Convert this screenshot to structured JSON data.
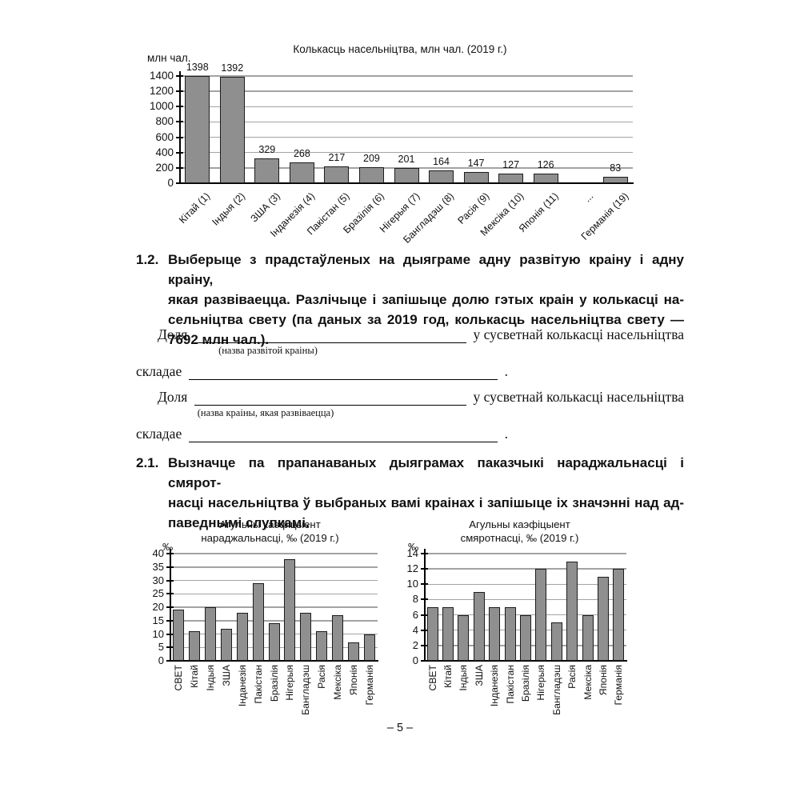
{
  "page": {
    "number_label": "– 5 –"
  },
  "colors": {
    "bar_fill": "#8f8f8f",
    "bar_border": "#1c1c1c",
    "gridline": "#a3a3a3",
    "text": "#111111"
  },
  "tasks": {
    "t12": {
      "number": "1.2.",
      "lines": [
        "Выберыце з прадстаўленых на дыяграме адну развітую краіну і адну краіну,",
        "якая развіваецца. Разлічыце і запішыце долю гэтых краін у колькасці на-",
        "сельніцтва свету (па даных за 2019 год, колькасць насельніцтва свету —",
        "7692 млн чал.)."
      ]
    },
    "t21": {
      "number": "2.1.",
      "lines": [
        "Вызначце па прапанаваных дыяграмах паказчыкі нараджальнасці і смярот-",
        "насці насельніцтва ў выбраных вамі краінах і запішыце іх значэнні над ад-",
        "паведнымі слупкамі."
      ]
    }
  },
  "fill_in": {
    "dolya_label": "Доля",
    "tail_label": "у сусветнай колькасці насельніцтва",
    "skladae_label": "складае",
    "period": ".",
    "caption_developed": "(назва развітой краіны)",
    "caption_developing": "(назва краіны, якая развіваецца)"
  },
  "chart_data": [
    {
      "type": "bar",
      "title": "Колькасць насельніцтва, млн чал. (2019 г.)",
      "ylabel": "млн чал.",
      "xlabel": "",
      "ylim": [
        0,
        1400
      ],
      "ystep": 200,
      "grid": true,
      "legend": false,
      "data_labels": true,
      "categories": [
        "Кітай (1)",
        "Індыя (2)",
        "ЗША (3)",
        "Інданезія (4)",
        "Пакістан (5)",
        "Бразілія (6)",
        "Нігерыя (7)",
        "Бангладэш (8)",
        "Расія (9)",
        "Мексіка (10)",
        "Японія (11)",
        "...",
        "Германія (19)"
      ],
      "values": [
        1398,
        1392,
        329,
        268,
        217,
        209,
        201,
        164,
        147,
        127,
        126,
        null,
        83
      ]
    },
    {
      "type": "bar",
      "title": "Агульны каэфіцыент нараджальнасці, ‰ (2019 г.)",
      "title_lines": [
        "Агульны каэфіцыент",
        "нараджальнасці, ‰ (2019 г.)"
      ],
      "ylabel": "‰",
      "xlabel": "",
      "ylim": [
        0,
        40
      ],
      "ystep": 5,
      "grid": true,
      "legend": false,
      "data_labels": false,
      "categories": [
        "СВЕТ",
        "Кітай",
        "Індыя",
        "ЗША",
        "Інданезія",
        "Пакістан",
        "Бразілія",
        "Нігерыя",
        "Бангладэш",
        "Расія",
        "Мексіка",
        "Японія",
        "Германія"
      ],
      "values": [
        19,
        11,
        20,
        12,
        18,
        29,
        14,
        38,
        18,
        11,
        17,
        7,
        10
      ]
    },
    {
      "type": "bar",
      "title": "Агульны каэфіцыент смяротнасці, ‰ (2019 г.)",
      "title_lines": [
        "Агульны каэфіцыент",
        "смяротнасці, ‰ (2019 г.)"
      ],
      "ylabel": "‰",
      "xlabel": "",
      "ylim": [
        0,
        14
      ],
      "ystep": 2,
      "grid": true,
      "legend": false,
      "data_labels": false,
      "categories": [
        "СВЕТ",
        "Кітай",
        "Індыя",
        "ЗША",
        "Інданезія",
        "Пакістан",
        "Бразілія",
        "Нігерыя",
        "Бангладэш",
        "Расія",
        "Мексіка",
        "Японія",
        "Германія"
      ],
      "values": [
        7,
        7,
        6,
        9,
        7,
        7,
        6,
        12,
        5,
        13,
        6,
        11,
        12
      ]
    }
  ]
}
